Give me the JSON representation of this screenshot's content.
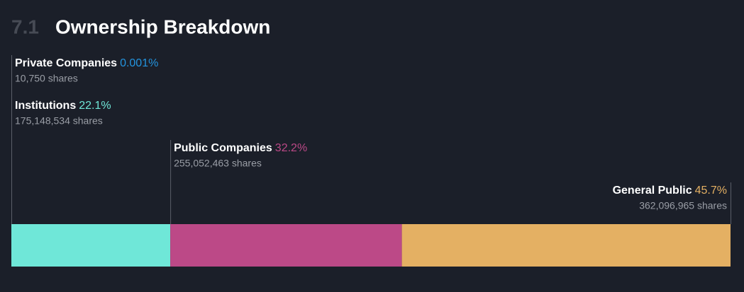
{
  "chart_data": {
    "type": "stacked_bar",
    "section_number": "7.1",
    "title": "Ownership Breakdown",
    "xlim": [
      0,
      100
    ],
    "series": [
      {
        "name": "Private Companies",
        "color": "#2394df",
        "values": [
          0.001
        ],
        "value_labels": [
          "0.001%"
        ],
        "shares_label": "10,750 shares"
      },
      {
        "name": "Institutions",
        "color": "#6fe7d8",
        "values": [
          22.1
        ],
        "value_labels": [
          "22.1%"
        ],
        "shares_label": "175,148,534 shares"
      },
      {
        "name": "Public Companies",
        "color": "#bc4987",
        "values": [
          32.2
        ],
        "value_labels": [
          "32.2%"
        ],
        "shares_label": "255,052,463 shares"
      },
      {
        "name": "General Public",
        "color": "#e4b063",
        "values": [
          45.7
        ],
        "value_labels": [
          "45.7%"
        ],
        "shares_label": "362,096,965 shares"
      }
    ]
  }
}
